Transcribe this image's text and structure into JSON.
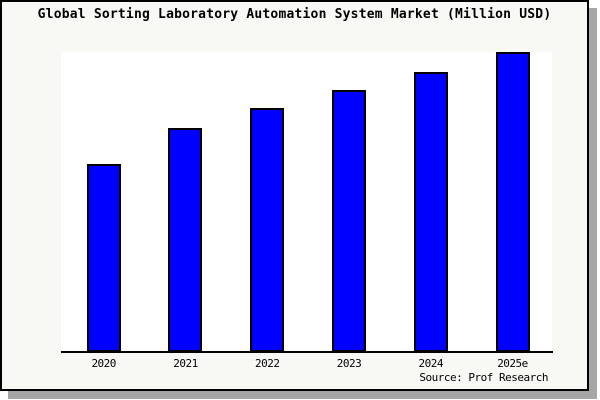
{
  "title": "Global Sorting Laboratory Automation System Market (Million USD)",
  "source": "Source: Prof Research",
  "chart_data": {
    "type": "bar",
    "title": "Global Sorting Laboratory Automation System Market (Million USD)",
    "categories": [
      "2020",
      "2021",
      "2022",
      "2023",
      "2024",
      "2025e"
    ],
    "values": [
      62.6,
      74.7,
      81.2,
      87.4,
      93.3,
      100
    ],
    "values_note": "y-axis is unlabeled; values are bar heights as percent of tallest bar (2025e = 100)",
    "series_name": "Market size (Million USD)",
    "xlabel": "",
    "ylabel": "",
    "ylim": [
      0,
      100
    ],
    "grid": false,
    "legend": false,
    "annotation": "Source: Prof Research"
  },
  "colors": {
    "page_bg": "#ffffff",
    "card_bg": "#f8f8f4",
    "plot_bg": "#ffffff",
    "bar_fill": "#0000ff",
    "bar_border": "#000000",
    "axis": "#000000",
    "text": "#000000",
    "frame_border": "#000000",
    "shadow": "#a6a6a6"
  }
}
